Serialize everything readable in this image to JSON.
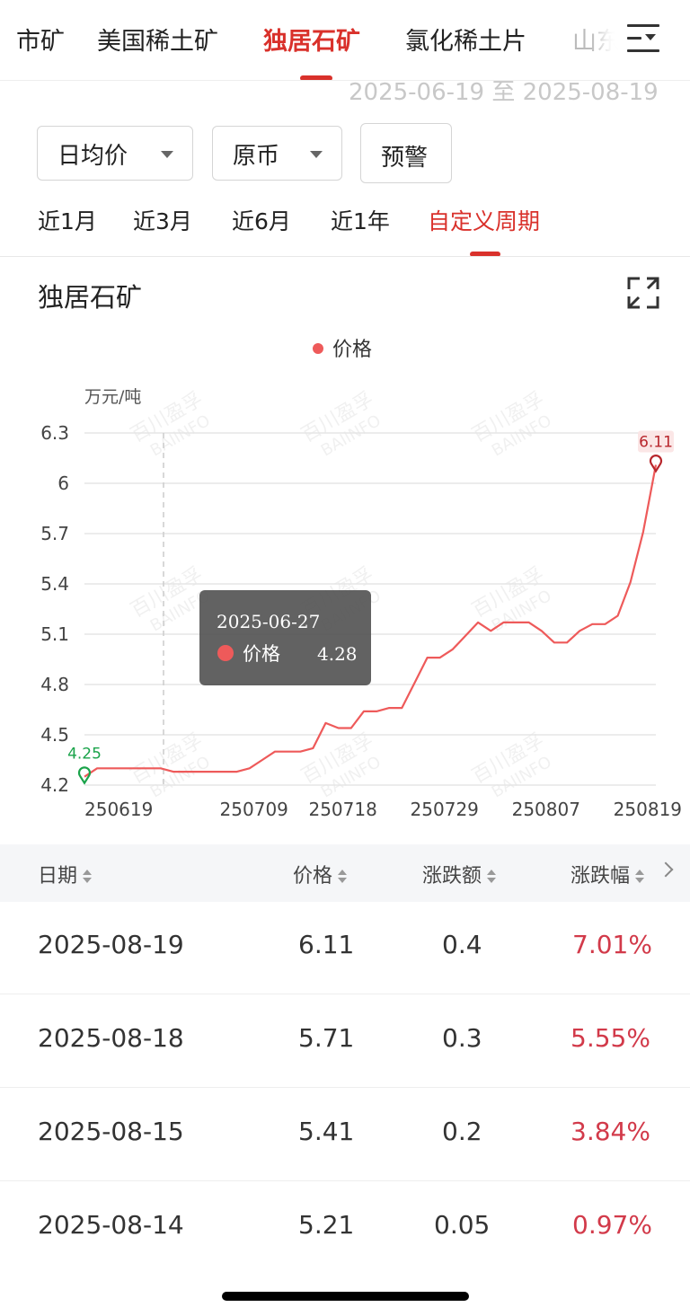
{
  "tabs": [
    {
      "label": "市矿",
      "active": false
    },
    {
      "label": "美国稀土矿",
      "active": false
    },
    {
      "label": "独居石矿",
      "active": true
    },
    {
      "label": "氯化稀土片",
      "active": false
    },
    {
      "label": "山东",
      "active": false
    }
  ],
  "date_range": "2025-06-19 至 2025-08-19",
  "filters": {
    "price_type": "日均价",
    "currency": "原币",
    "alert_label": "预警"
  },
  "periods": [
    {
      "label": "近1月",
      "active": false
    },
    {
      "label": "近3月",
      "active": false
    },
    {
      "label": "近6月",
      "active": false
    },
    {
      "label": "近1年",
      "active": false
    },
    {
      "label": "自定义周期",
      "active": true
    }
  ],
  "chart_title": "独居石矿",
  "chart_data": {
    "type": "line",
    "legend": "价格",
    "unit": "万元/吨",
    "ylim": [
      4.2,
      6.3
    ],
    "yticks": [
      "6.3",
      "6",
      "5.7",
      "5.4",
      "5.1",
      "4.8",
      "4.5",
      "4.2"
    ],
    "xtick_labels": [
      "250619",
      "250709",
      "250718",
      "250729",
      "250807",
      "250819"
    ],
    "grid": true,
    "color": "#ee5a5a",
    "watermark": "百川盈孚 BAIINFO",
    "series": [
      {
        "name": "价格",
        "values": [
          4.25,
          4.3,
          4.3,
          4.3,
          4.3,
          4.3,
          4.3,
          4.28,
          4.28,
          4.28,
          4.28,
          4.28,
          4.28,
          4.3,
          4.35,
          4.4,
          4.4,
          4.4,
          4.42,
          4.57,
          4.54,
          4.54,
          4.64,
          4.64,
          4.66,
          4.66,
          4.81,
          4.96,
          4.96,
          5.01,
          5.09,
          5.17,
          5.12,
          5.17,
          5.17,
          5.17,
          5.12,
          5.05,
          5.05,
          5.12,
          5.16,
          5.16,
          5.21,
          5.41,
          5.71,
          6.11
        ]
      }
    ],
    "min_marker": {
      "label": "4.25",
      "value": 4.25
    },
    "max_marker": {
      "label": "6.11",
      "value": 6.11
    },
    "tooltip": {
      "date": "2025-06-27",
      "series": "价格",
      "value": "4.28"
    }
  },
  "table": {
    "headers": [
      "日期",
      "价格",
      "涨跌额",
      "涨跌幅"
    ],
    "rows": [
      {
        "date": "2025-08-19",
        "price": "6.11",
        "change": "0.4",
        "pct": "7.01%"
      },
      {
        "date": "2025-08-18",
        "price": "5.71",
        "change": "0.3",
        "pct": "5.55%"
      },
      {
        "date": "2025-08-15",
        "price": "5.41",
        "change": "0.2",
        "pct": "3.84%"
      },
      {
        "date": "2025-08-14",
        "price": "5.21",
        "change": "0.05",
        "pct": "0.97%"
      }
    ]
  }
}
